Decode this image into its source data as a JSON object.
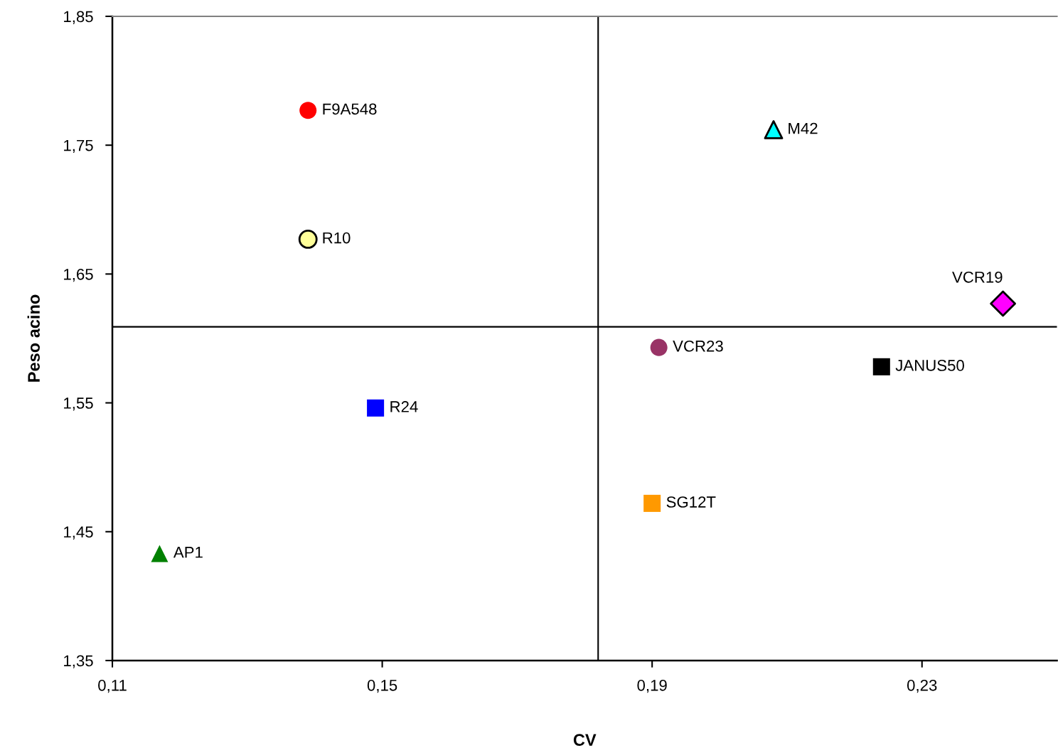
{
  "chart_data": {
    "type": "scatter",
    "xlabel": "CV",
    "ylabel": "Peso acino",
    "xlim": [
      0.11,
      0.25
    ],
    "ylim": [
      1.35,
      1.85
    ],
    "xticks": [
      {
        "value": 0.11,
        "label": "0,11"
      },
      {
        "value": 0.15,
        "label": "0,15"
      },
      {
        "value": 0.19,
        "label": "0,19"
      },
      {
        "value": 0.23,
        "label": "0,23"
      }
    ],
    "yticks": [
      {
        "value": 1.35,
        "label": "1,35"
      },
      {
        "value": 1.45,
        "label": "1,45"
      },
      {
        "value": 1.55,
        "label": "1,55"
      },
      {
        "value": 1.65,
        "label": "1,65"
      },
      {
        "value": 1.75,
        "label": "1,75"
      },
      {
        "value": 1.85,
        "label": "1,85"
      }
    ],
    "grid": false,
    "legend": false,
    "ref_lines": [
      {
        "axis": "x",
        "value": 0.182,
        "color": "#000000"
      },
      {
        "axis": "y",
        "value": 1.609,
        "color": "#000000"
      }
    ],
    "series": [
      {
        "name": "F9A548",
        "color": "#ff0000",
        "marker": "circle",
        "x": [
          0.139
        ],
        "values": [
          1.777
        ]
      },
      {
        "name": "R10",
        "color": "#ffff99",
        "marker": "circle",
        "x": [
          0.139
        ],
        "values": [
          1.677
        ]
      },
      {
        "name": "M42",
        "color": "#00ffff",
        "marker": "triangle",
        "x": [
          0.208
        ],
        "values": [
          1.762
        ]
      },
      {
        "name": "VCR19",
        "color": "#ff00ff",
        "marker": "diamond",
        "x": [
          0.242
        ],
        "values": [
          1.627
        ]
      },
      {
        "name": "VCR23",
        "color": "#993366",
        "marker": "circle",
        "x": [
          0.191
        ],
        "values": [
          1.593
        ]
      },
      {
        "name": "JANUS50",
        "color": "#000000",
        "marker": "square",
        "x": [
          0.224
        ],
        "values": [
          1.578
        ]
      },
      {
        "name": "R24",
        "color": "#0000ff",
        "marker": "square",
        "x": [
          0.149
        ],
        "values": [
          1.546
        ]
      },
      {
        "name": "SG12T",
        "color": "#ff9900",
        "marker": "square",
        "x": [
          0.19
        ],
        "values": [
          1.472
        ]
      },
      {
        "name": "AP1",
        "color": "#008000",
        "marker": "triangle",
        "x": [
          0.117
        ],
        "values": [
          1.433
        ]
      }
    ]
  }
}
